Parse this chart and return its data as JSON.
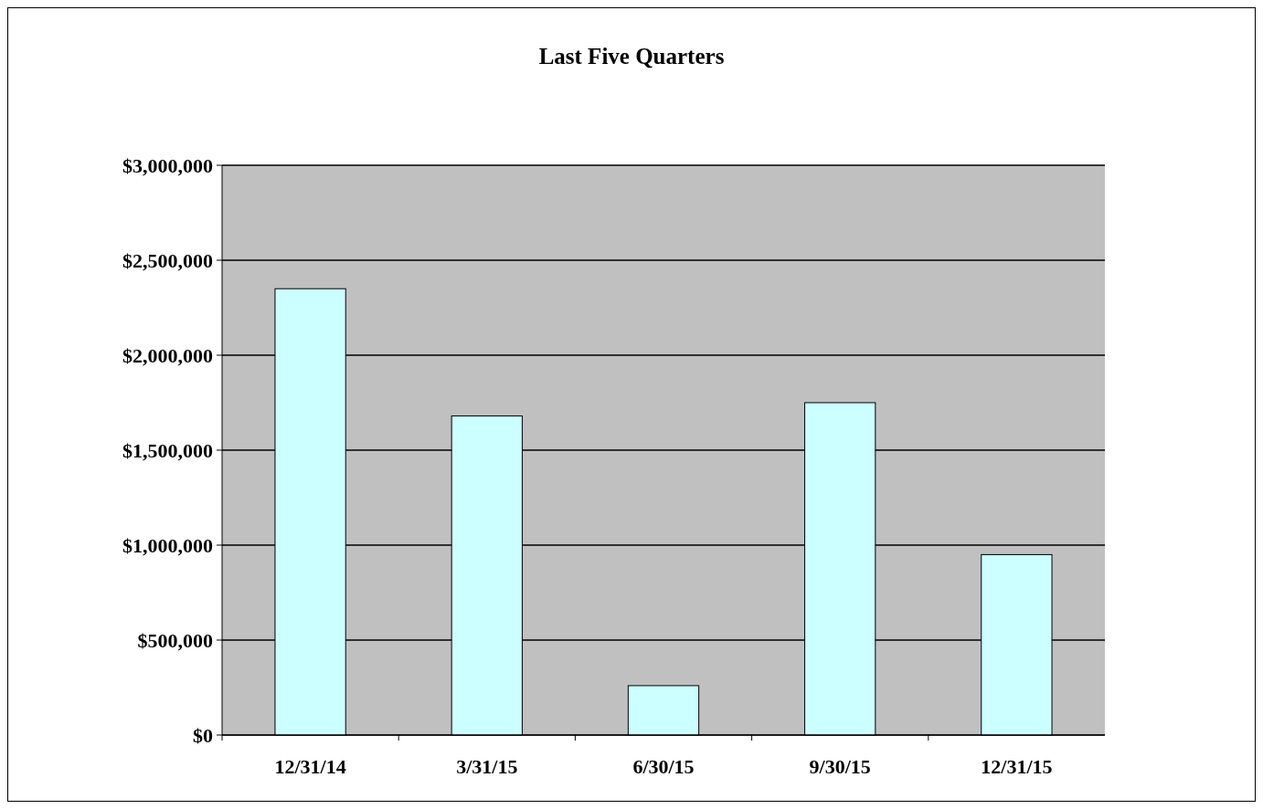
{
  "chart_data": {
    "type": "bar",
    "title": "Last Five Quarters",
    "categories": [
      "12/31/14",
      "3/31/15",
      "6/30/15",
      "9/30/15",
      "12/31/15"
    ],
    "values": [
      2350000,
      1680000,
      260000,
      1750000,
      950000
    ],
    "color": "#ccffff",
    "ylim": [
      0,
      3000000
    ],
    "yticks": [
      {
        "value": 0,
        "label": "$0"
      },
      {
        "value": 500000,
        "label": "$500,000"
      },
      {
        "value": 1000000,
        "label": "$1,000,000"
      },
      {
        "value": 1500000,
        "label": "$1,500,000"
      },
      {
        "value": 2000000,
        "label": "$2,000,000"
      },
      {
        "value": 2500000,
        "label": "$2,500,000"
      },
      {
        "value": 3000000,
        "label": "$3,000,000"
      }
    ],
    "grid": "y"
  }
}
